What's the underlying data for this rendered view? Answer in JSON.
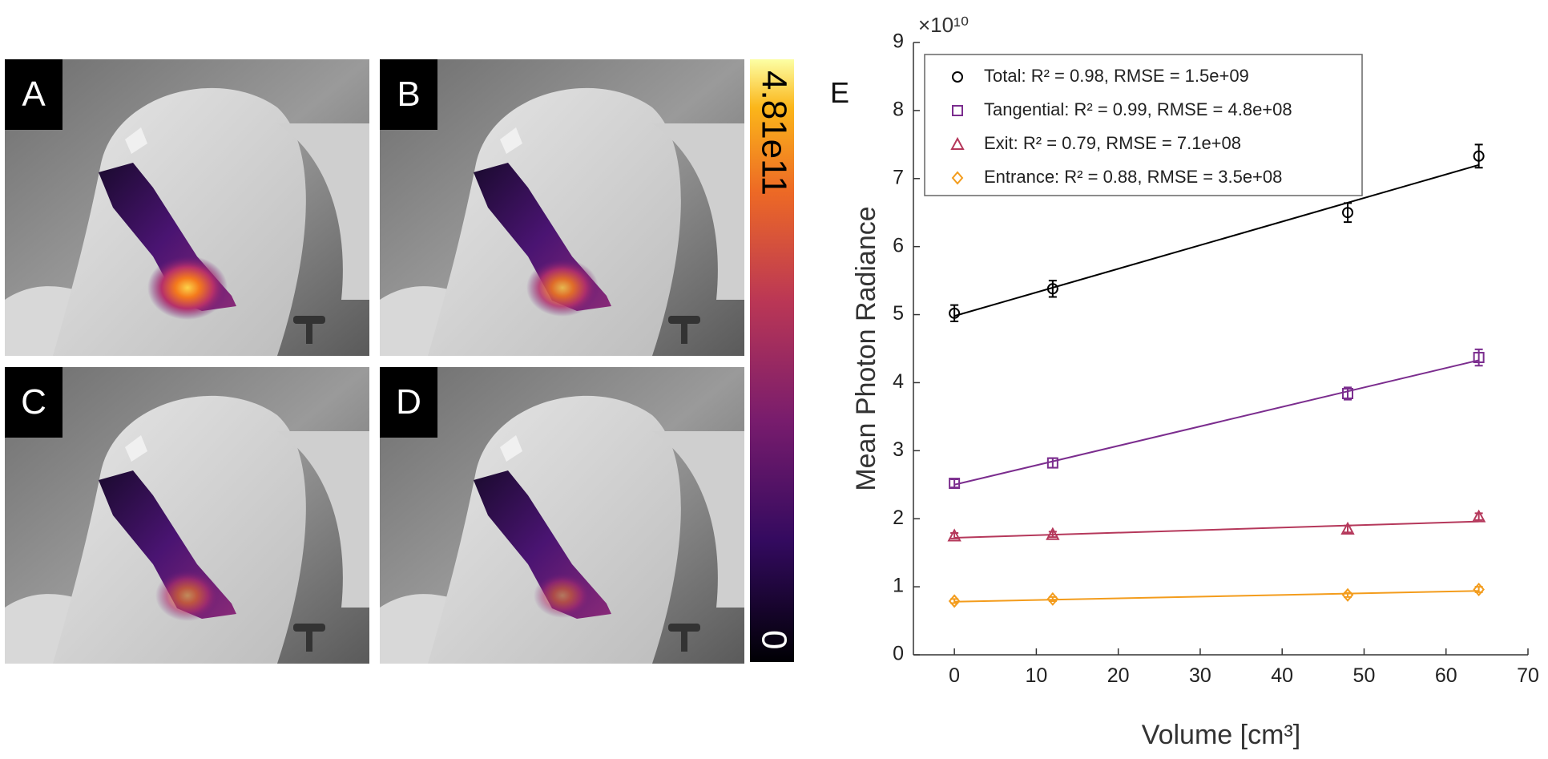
{
  "panels": [
    {
      "label": "A"
    },
    {
      "label": "B"
    },
    {
      "label": "C"
    },
    {
      "label": "D"
    }
  ],
  "colorbar": {
    "max": {
      "value": 481000000000,
      "label": "4.81e11"
    },
    "min": 0
  },
  "chart_data": {
    "type": "scatter",
    "panel_label": "E",
    "x_label": "Volume [cm³]",
    "y_label": "Mean Photon Radiance",
    "y_exponent": "×10¹⁰",
    "xlim": [
      -5,
      70
    ],
    "xticks": [
      0,
      10,
      20,
      30,
      40,
      50,
      60,
      70
    ],
    "ylim": [
      0,
      9
    ],
    "yticks": [
      0,
      1,
      2,
      3,
      4,
      5,
      6,
      7,
      8,
      9
    ],
    "x": [
      0,
      12,
      48,
      64
    ],
    "series": [
      {
        "name": "Total: R² = 0.98, RMSE = 1.5e+09",
        "color": "#000000",
        "marker": "circle",
        "values": [
          5.02,
          5.38,
          6.5,
          7.33
        ],
        "errors": [
          0.12,
          0.12,
          0.14,
          0.17
        ],
        "fit": {
          "x": [
            0,
            64
          ],
          "values": [
            4.98,
            7.2
          ]
        }
      },
      {
        "name": "Tangential: R² = 0.99, RMSE = 4.8e+08",
        "color": "#7b2d8e",
        "marker": "square",
        "values": [
          2.52,
          2.82,
          3.84,
          4.37
        ],
        "errors": [
          0.06,
          0.07,
          0.09,
          0.12
        ],
        "fit": {
          "x": [
            0,
            64
          ],
          "values": [
            2.5,
            4.33
          ]
        }
      },
      {
        "name": "Exit: R² = 0.79, RMSE = 7.1e+08",
        "color": "#b5385b",
        "marker": "triangle",
        "values": [
          1.75,
          1.77,
          1.85,
          2.03
        ],
        "errors": [
          0.04,
          0.04,
          0.05,
          0.05
        ],
        "fit": {
          "x": [
            0,
            64
          ],
          "values": [
            1.72,
            1.96
          ]
        }
      },
      {
        "name": "Entrance: R² = 0.88, RMSE = 3.5e+08",
        "color": "#f39c1c",
        "marker": "diamond",
        "values": [
          0.79,
          0.82,
          0.88,
          0.96
        ],
        "errors": [
          0.03,
          0.03,
          0.03,
          0.04
        ],
        "fit": {
          "x": [
            0,
            64
          ],
          "values": [
            0.78,
            0.94
          ]
        }
      }
    ]
  }
}
